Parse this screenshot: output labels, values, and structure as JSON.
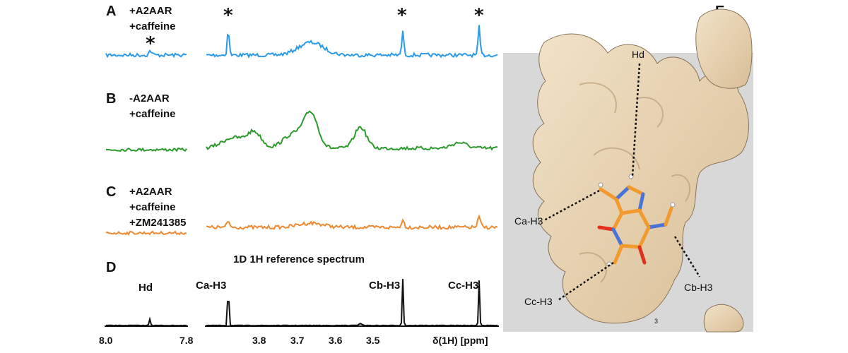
{
  "panels": {
    "A": {
      "letter": "A",
      "conditions": [
        "+A2AAR",
        "+caffeine"
      ],
      "trace_color": "#2b9be8",
      "peak_markers": [
        "*",
        "*",
        "*",
        "*"
      ]
    },
    "B": {
      "letter": "B",
      "conditions": [
        "-A2AAR",
        "+caffeine"
      ],
      "trace_color": "#2e9a2e"
    },
    "C": {
      "letter": "C",
      "conditions": [
        "+A2AAR",
        "+caffeine",
        "+ZM241385"
      ],
      "trace_color": "#ee8a34"
    },
    "D": {
      "letter": "D",
      "title": "1D 1H reference spectrum",
      "trace_color": "#111111",
      "peak_labels": [
        "Hd",
        "Ca-H3",
        "Cb-H3",
        "Cc-H3"
      ]
    },
    "E": {
      "letter": "E",
      "labels": [
        "Hd",
        "Ca-H3",
        "Cb-H3",
        "Cc-H3",
        "3"
      ],
      "surface_color": "#e8d3b4",
      "ligand_colors": {
        "carbon": "#f29a2e",
        "nitrogen": "#4a73d8",
        "oxygen": "#e0301e",
        "hydrogen": "#ffffff"
      }
    }
  },
  "chart_data": {
    "type": "line",
    "xlabel": "δ(1H) [ppm]",
    "x_ticks_left": [
      "8.0",
      "7.8"
    ],
    "x_ticks_right": [
      "3.8",
      "3.7",
      "3.6",
      "3.5"
    ],
    "xlim_left_segment": [
      8.0,
      7.8
    ],
    "xlim_right_segment": [
      3.88,
      3.35
    ],
    "series": [
      {
        "name": "Hd",
        "peak_ppm": 7.9
      },
      {
        "name": "Ca-H3",
        "peak_ppm": 3.84
      },
      {
        "name": "Cb-H3",
        "peak_ppm": 3.44
      },
      {
        "name": "Cc-H3",
        "peak_ppm": 3.37
      }
    ]
  }
}
